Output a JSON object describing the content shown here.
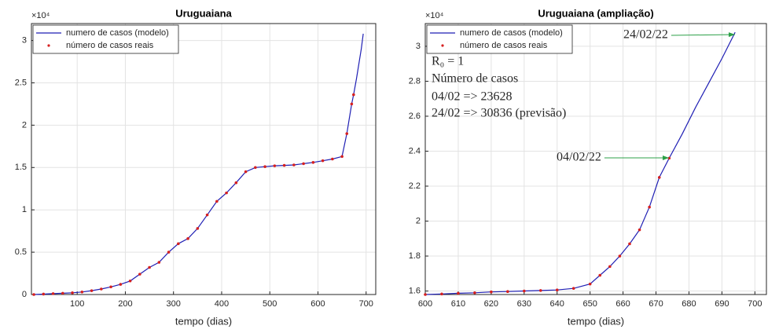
{
  "chart_data": [
    {
      "type": "line",
      "title": "Uruguaiana",
      "x_label": "tempo (dias)",
      "exponent_label": "×10⁴",
      "x": [
        10,
        30,
        50,
        70,
        90,
        110,
        130,
        150,
        170,
        190,
        210,
        230,
        250,
        270,
        290,
        310,
        330,
        350,
        370,
        390,
        410,
        430,
        450,
        470,
        490,
        510,
        530,
        550,
        570,
        590,
        610,
        630,
        650,
        660,
        670,
        674,
        680,
        690,
        694
      ],
      "series": [
        {
          "name": "numero de casos (modelo)",
          "color": "#1f1fb4",
          "style": "line",
          "values": [
            0,
            0.005,
            0.01,
            0.015,
            0.02,
            0.03,
            0.045,
            0.065,
            0.09,
            0.12,
            0.16,
            0.24,
            0.32,
            0.38,
            0.5,
            0.6,
            0.66,
            0.78,
            0.94,
            1.1,
            1.2,
            1.32,
            1.45,
            1.5,
            1.51,
            1.52,
            1.525,
            1.53,
            1.545,
            1.56,
            1.58,
            1.6,
            1.63,
            1.9,
            2.25,
            2.36,
            2.55,
            2.9,
            3.08
          ]
        },
        {
          "name": "número de casos reais",
          "color": "#d62020",
          "style": "dots",
          "values": [
            0,
            0.005,
            0.01,
            0.015,
            0.02,
            0.03,
            0.045,
            0.065,
            0.09,
            0.12,
            0.16,
            0.24,
            0.32,
            0.38,
            0.5,
            0.6,
            0.66,
            0.78,
            0.94,
            1.1,
            1.2,
            1.32,
            1.45,
            1.5,
            1.51,
            1.52,
            1.525,
            1.53,
            1.545,
            1.56,
            1.58,
            1.6,
            1.63,
            1.9,
            2.25,
            2.36,
            null,
            null,
            null
          ]
        }
      ],
      "xlim": [
        5,
        720
      ],
      "ylim": [
        0,
        3.2
      ],
      "xticks": [
        100,
        200,
        300,
        400,
        500,
        600,
        700
      ],
      "yticks": [
        0,
        0.5,
        1,
        1.5,
        2,
        2.5,
        3
      ],
      "grid": true,
      "legend": "upper-left",
      "annotations": []
    },
    {
      "type": "line",
      "title": "Uruguaiana (ampliação)",
      "x_label": "tempo (dias)",
      "exponent_label": "×10⁴",
      "x": [
        600,
        605,
        610,
        615,
        620,
        625,
        630,
        635,
        640,
        645,
        650,
        653,
        656,
        659,
        662,
        665,
        668,
        671,
        674,
        678,
        682,
        686,
        690,
        694
      ],
      "series": [
        {
          "name": "numero de casos (modelo)",
          "color": "#1f1fb4",
          "style": "line",
          "values": [
            1.58,
            1.583,
            1.587,
            1.59,
            1.595,
            1.597,
            1.6,
            1.603,
            1.606,
            1.615,
            1.64,
            1.69,
            1.74,
            1.8,
            1.87,
            1.95,
            2.08,
            2.25,
            2.36,
            2.5,
            2.65,
            2.79,
            2.93,
            3.08
          ]
        },
        {
          "name": "número de casos reais",
          "color": "#d62020",
          "style": "dots",
          "values": [
            1.58,
            1.583,
            1.587,
            1.59,
            1.595,
            1.597,
            1.6,
            1.603,
            1.606,
            1.615,
            1.64,
            1.69,
            1.74,
            1.8,
            1.87,
            1.95,
            2.08,
            2.25,
            2.36,
            null,
            null,
            null,
            null,
            null
          ]
        }
      ],
      "xlim": [
        600,
        703.5
      ],
      "ylim": [
        1.58,
        3.13
      ],
      "xticks": [
        600,
        610,
        620,
        630,
        640,
        650,
        660,
        670,
        680,
        690,
        700
      ],
      "yticks": [
        1.6,
        1.8,
        2,
        2.2,
        2.4,
        2.6,
        2.8,
        3
      ],
      "grid": true,
      "legend": "upper-left",
      "annotations": [
        {
          "text": "24/02/22",
          "color": "#2ca048"
        },
        {
          "text": "R₀ = 1",
          "color": "#2ca048"
        },
        {
          "text": "Número de casos",
          "color": "#2ca048"
        },
        {
          "text": "04/02 => 23628",
          "color": "#d62020"
        },
        {
          "text": "24/02 => 30836 (previsão)",
          "color": "#3a4fb0"
        },
        {
          "text": "04/02/22",
          "color": "#2ca048"
        }
      ]
    }
  ]
}
